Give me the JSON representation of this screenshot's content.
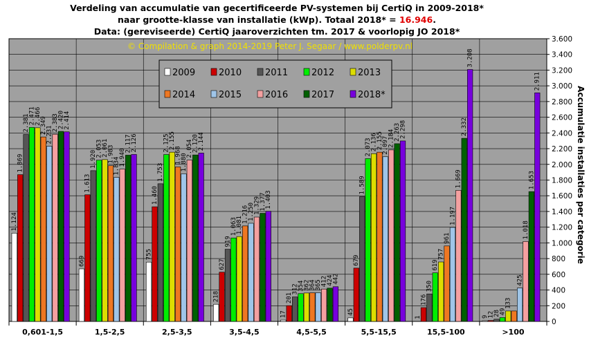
{
  "header": {
    "line1": "Verdeling van accumulatie van gecertificeerde PV-systemen bij CertiQ in 2009-2018*",
    "line2_prefix": "naar grootte-klasse van installatie (kWp).  Totaal 2018* = ",
    "line2_total": "16.946",
    "line2_suffix": ".",
    "line3": "Data: (gereviseerde) CertiQ jaaroverzichten tm. 2017 & voorlopig JO 2018*",
    "credit": "© Compilation  & graph 2014-2019 Peter  J. Segaar / www.polderpv.nl"
  },
  "chart_data": {
    "type": "bar",
    "title": "Verdeling van accumulatie van gecertificeerde PV-systemen bij CertiQ in 2009-2018*",
    "ylabel": "Accumulatie installaties per categorie",
    "xlabel": "",
    "ylim": [
      0,
      3600
    ],
    "yticks": [
      0,
      200,
      400,
      600,
      800,
      1000,
      1200,
      1400,
      1600,
      1800,
      2000,
      2200,
      2400,
      2600,
      2800,
      3000,
      3200,
      3400,
      3600
    ],
    "ytick_labels": [
      "0",
      "200",
      "400",
      "600",
      "800",
      "1.000",
      "1.200",
      "1.400",
      "1.600",
      "1.800",
      "2.000",
      "2.200",
      "2.400",
      "2.600",
      "2.800",
      "3.000",
      "3.200",
      "3.400",
      "3.600"
    ],
    "grid": true,
    "legend_position": "top-left",
    "categories": [
      "0,601-1,5",
      "1,5-2,5",
      "2,5-3,5",
      "3,5-4,5",
      "4,5-5,5",
      "5,5-15,5",
      "15,5-100",
      ">100"
    ],
    "series": [
      {
        "name": "2009",
        "color": "#ffffff",
        "values": [
          1124,
          669,
          755,
          218,
          17,
          45,
          1,
          9
        ]
      },
      {
        "name": "2010",
        "color": "#cc0000",
        "values": [
          1869,
          1613,
          1460,
          627,
          201,
          679,
          176,
          12
        ]
      },
      {
        "name": "2011",
        "color": "#555555",
        "values": [
          2381,
          1920,
          1753,
          919,
          312,
          1589,
          350,
          28
        ]
      },
      {
        "name": "2012",
        "color": "#00ee00",
        "values": [
          2471,
          2053,
          2125,
          1063,
          354,
          2073,
          619,
          49
        ]
      },
      {
        "name": "2013",
        "color": "#dddd00",
        "values": [
          2466,
          2061,
          2155,
          1081,
          362,
          2136,
          757,
          133
        ]
      },
      {
        "name": "2014",
        "color": "#ee7722",
        "values": [
          2349,
          1983,
          1968,
          1216,
          364,
          2155,
          961,
          133
        ]
      },
      {
        "name": "2015",
        "color": "#9fc5e8",
        "values": [
          2231,
          1834,
          1880,
          1250,
          365,
          2097,
          1197,
          425
        ]
      },
      {
        "name": "2016",
        "color": "#f4a0a0",
        "values": [
          2383,
          1940,
          2054,
          1329,
          412,
          2184,
          1669,
          1018
        ]
      },
      {
        "name": "2017",
        "color": "#006000",
        "values": [
          2420,
          2117,
          2120,
          1377,
          424,
          2263,
          2332,
          1653
        ]
      },
      {
        "name": "2018*",
        "color": "#7700dd",
        "values": [
          2414,
          2126,
          2144,
          1403,
          442,
          2298,
          3208,
          2911
        ]
      }
    ],
    "labels": [
      [
        "1.124",
        "669",
        "755",
        "218",
        "17",
        "45",
        "1",
        "9"
      ],
      [
        "1.869",
        "1.613",
        "1.460",
        "627",
        "201",
        "679",
        "176",
        "12"
      ],
      [
        "2.381",
        "1.920",
        "1.753",
        "919",
        "312",
        "1.589",
        "350",
        "28"
      ],
      [
        "2.471",
        "2.053",
        "2.125",
        "1.063",
        "354",
        "2.073",
        "619",
        "49"
      ],
      [
        "2.466",
        "2.061",
        "2.155",
        "1.081",
        "362",
        "2.136",
        "757",
        "133"
      ],
      [
        "2.349",
        "1.983",
        "1.968",
        "1.216",
        "364",
        "2.155",
        "961",
        ""
      ],
      [
        "2.231",
        "1.834",
        "1.880",
        "1.250",
        "365",
        "2.097",
        "1.197",
        "425"
      ],
      [
        "2.383",
        "1.940",
        "2.054",
        "1.329",
        "412",
        "2.184",
        "1.669",
        "1.018"
      ],
      [
        "2.420",
        "2.117",
        "2.120",
        "1.377",
        "424",
        "2.263",
        "2.332",
        "1.653"
      ],
      [
        "2.414",
        "2.126",
        "2.144",
        "1.403",
        "442",
        "2.298",
        "3.208",
        "2.911"
      ]
    ]
  },
  "style": {
    "plot_background": "#a0a0a0",
    "legend_background": "#a0a0a0",
    "total_color": "#e00000",
    "credit_color": "#f0e000"
  }
}
